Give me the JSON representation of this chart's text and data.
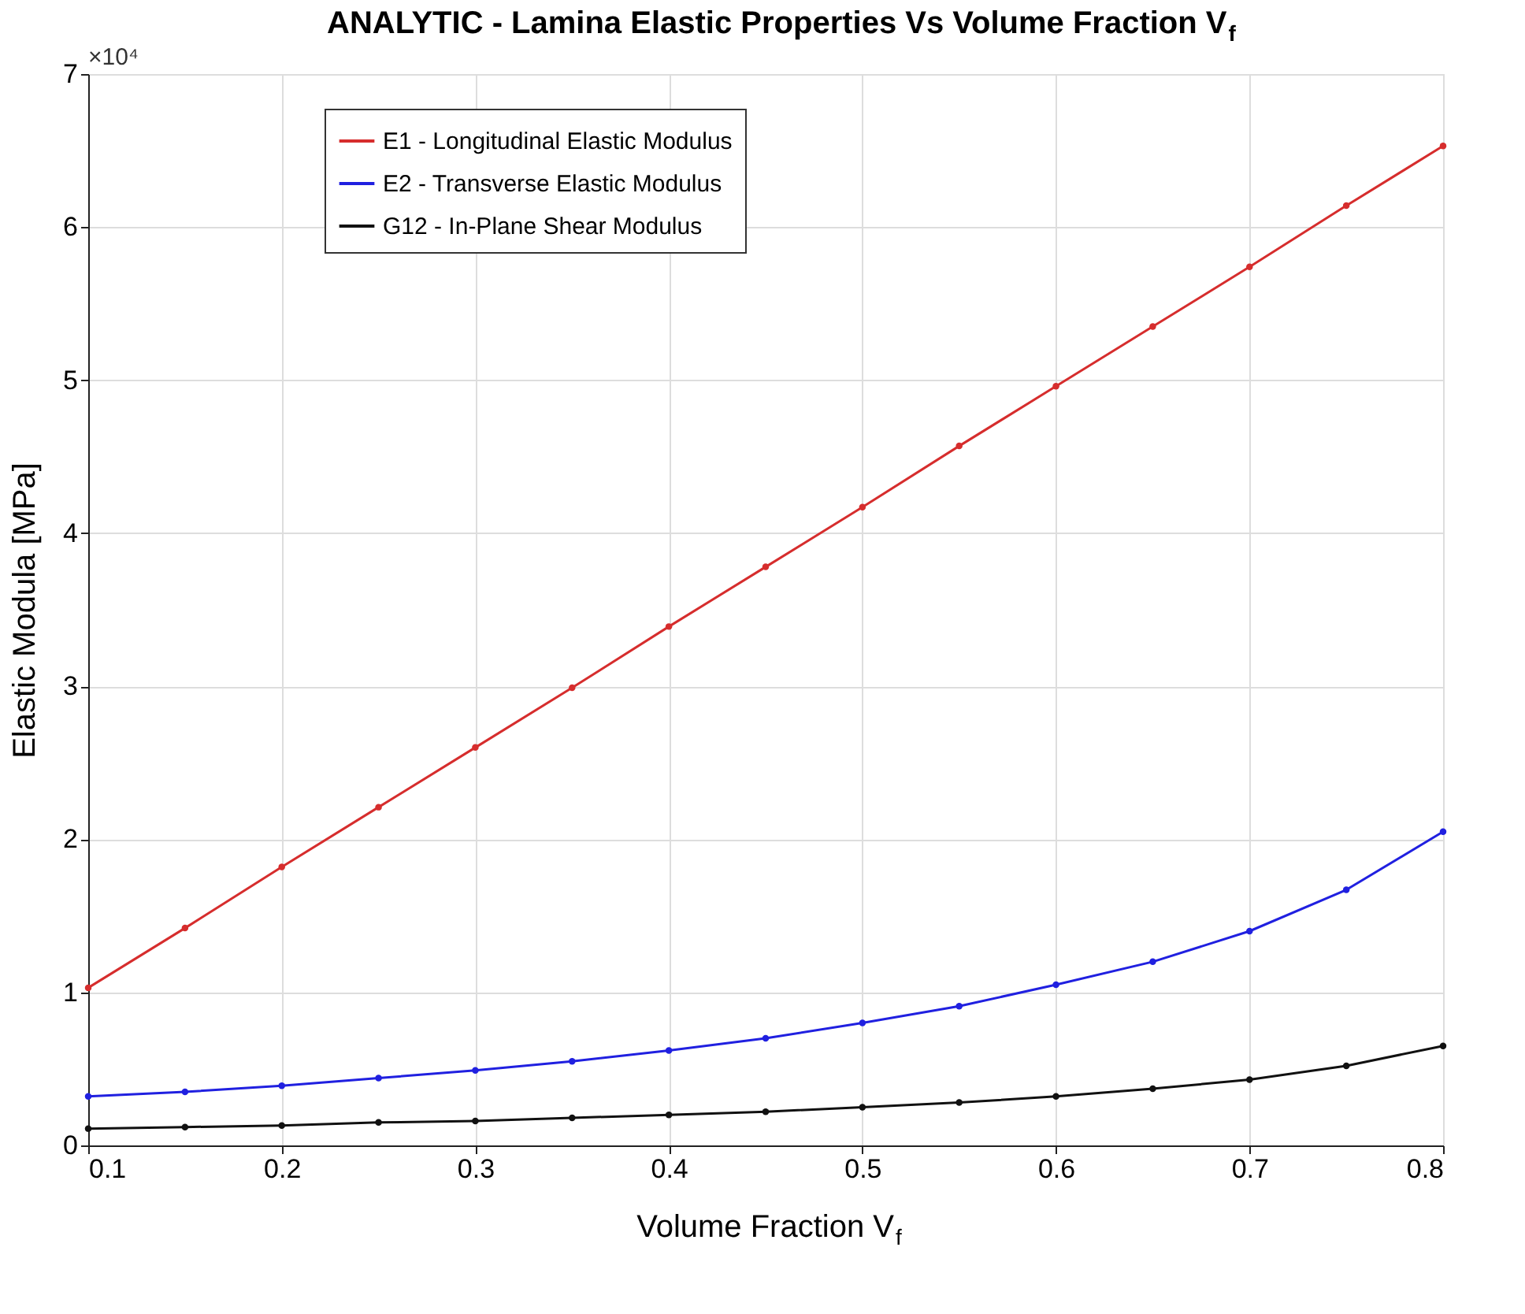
{
  "chart_data": {
    "type": "line",
    "title": "ANALYTIC - Lamina Elastic Properties Vs Volume Fraction V$_{f}$",
    "xlabel": "Volume Fraction V$_{f}$",
    "ylabel": "Elastic Modula [MPa]",
    "annotations": [
      "×10⁴"
    ],
    "x": [
      0.1,
      0.15,
      0.2,
      0.25,
      0.3,
      0.35,
      0.4,
      0.45,
      0.5,
      0.55,
      0.6,
      0.65,
      0.7,
      0.75,
      0.8
    ],
    "series": [
      {
        "name": "E1 - Longitudinal Elastic Modulus",
        "color": "#d62d2d",
        "values": [
          1.03,
          1.42,
          1.82,
          2.21,
          2.6,
          2.99,
          3.39,
          3.78,
          4.17,
          4.57,
          4.96,
          5.35,
          5.74,
          6.14,
          6.53
        ]
      },
      {
        "name": "E2 - Transverse Elastic Modulus",
        "color": "#2020e0",
        "values": [
          0.32,
          0.35,
          0.39,
          0.44,
          0.49,
          0.55,
          0.62,
          0.7,
          0.8,
          0.91,
          1.05,
          1.2,
          1.4,
          1.67,
          2.05
        ]
      },
      {
        "name": "G12 - In-Plane Shear Modulus",
        "color": "#111111",
        "values": [
          0.11,
          0.12,
          0.13,
          0.15,
          0.16,
          0.18,
          0.2,
          0.22,
          0.25,
          0.28,
          0.32,
          0.37,
          0.43,
          0.52,
          0.65
        ]
      }
    ],
    "xlim": [
      0.1,
      0.8
    ],
    "xticks": [
      0.1,
      0.2,
      0.3,
      0.4,
      0.5,
      0.6,
      0.7,
      0.8
    ],
    "ylim": [
      0,
      7
    ],
    "yticks": [
      0,
      1,
      2,
      3,
      4,
      5,
      6,
      7
    ],
    "grid": true,
    "legend": "top left",
    "marker": "circle",
    "line_style": "solid"
  }
}
